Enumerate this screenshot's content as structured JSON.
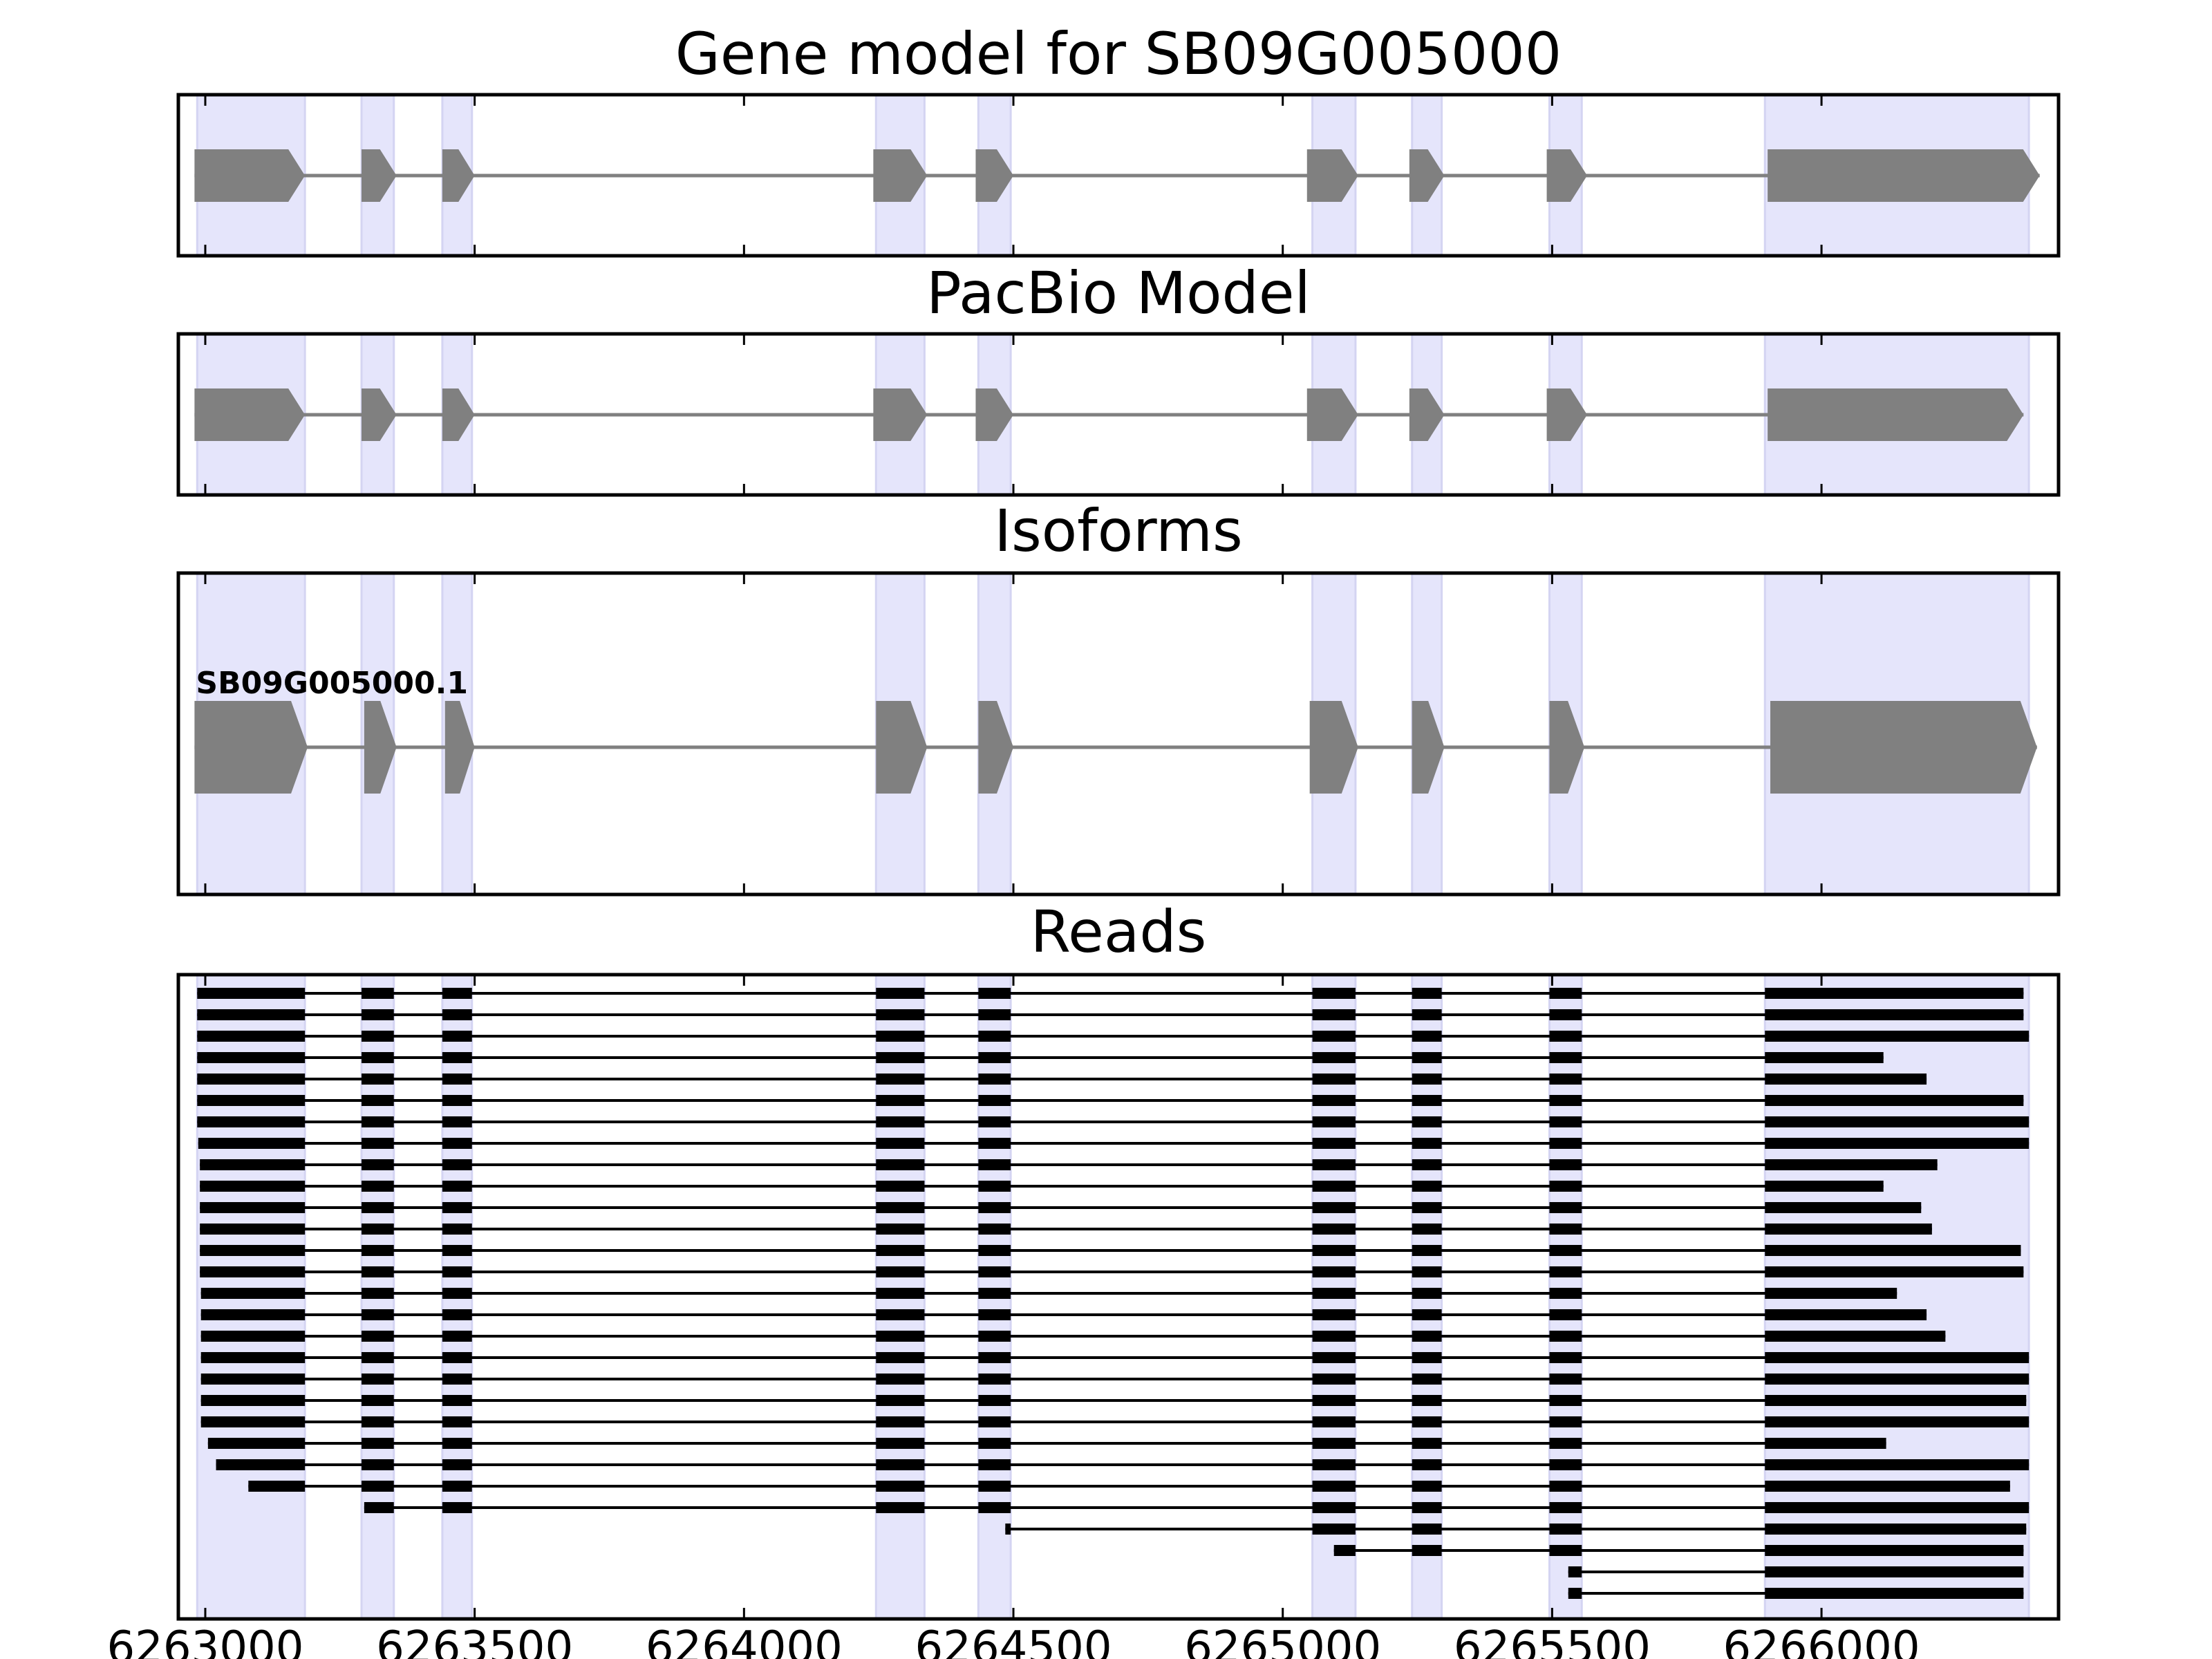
{
  "chart_data": {
    "type": "gene-structure",
    "x_range": [
      6262950,
      6266440
    ],
    "xticks": [
      6263000,
      6263500,
      6264000,
      6264500,
      6265000,
      6265500,
      6266000
    ],
    "xtick_labels": [
      "6263000",
      "6263500",
      "6264000",
      "6264500",
      "6265000",
      "6265500",
      "6266000"
    ],
    "exon_bands": [
      [
        6262985,
        6263185
      ],
      [
        6263290,
        6263350
      ],
      [
        6263440,
        6263495
      ],
      [
        6264245,
        6264335
      ],
      [
        6264435,
        6264495
      ],
      [
        6265055,
        6265135
      ],
      [
        6265240,
        6265295
      ],
      [
        6265495,
        6265555
      ],
      [
        6265895,
        6266385
      ]
    ],
    "gene_model": {
      "title": "Gene model for SB09G005000",
      "exons": [
        [
          6262980,
          6263185
        ],
        [
          6263290,
          6263355
        ],
        [
          6263440,
          6263500
        ],
        [
          6264240,
          6264340
        ],
        [
          6264430,
          6264500
        ],
        [
          6265045,
          6265140
        ],
        [
          6265235,
          6265300
        ],
        [
          6265490,
          6265565
        ],
        [
          6265900,
          6266405
        ]
      ]
    },
    "pacbio_model": {
      "title": "PacBio Model",
      "exons": [
        [
          6262980,
          6263185
        ],
        [
          6263290,
          6263355
        ],
        [
          6263440,
          6263500
        ],
        [
          6264240,
          6264340
        ],
        [
          6264430,
          6264500
        ],
        [
          6265045,
          6265140
        ],
        [
          6265235,
          6265300
        ],
        [
          6265490,
          6265565
        ],
        [
          6265900,
          6266375
        ]
      ]
    },
    "isoforms": {
      "title": "Isoforms",
      "items": [
        {
          "name": "SB09G005000.1",
          "exons": [
            [
              6262980,
              6263190
            ],
            [
              6263295,
              6263355
            ],
            [
              6263445,
              6263500
            ],
            [
              6264245,
              6264340
            ],
            [
              6264435,
              6264500
            ],
            [
              6265050,
              6265140
            ],
            [
              6265240,
              6265300
            ],
            [
              6265495,
              6265560
            ],
            [
              6265905,
              6266400
            ]
          ]
        }
      ]
    },
    "reads": {
      "title": "Reads",
      "items": [
        {
          "start": 6262975,
          "end": 6266375
        },
        {
          "start": 6262980,
          "end": 6266375
        },
        {
          "start": 6262982,
          "end": 6266390
        },
        {
          "start": 6262985,
          "end": 6266115
        },
        {
          "start": 6262985,
          "end": 6266195
        },
        {
          "start": 6262985,
          "end": 6266375
        },
        {
          "start": 6262985,
          "end": 6266390
        },
        {
          "start": 6262987,
          "end": 6266390
        },
        {
          "start": 6262990,
          "end": 6266215
        },
        {
          "start": 6262990,
          "end": 6266115
        },
        {
          "start": 6262990,
          "end": 6266185
        },
        {
          "start": 6262990,
          "end": 6266205
        },
        {
          "start": 6262990,
          "end": 6266370
        },
        {
          "start": 6262990,
          "end": 6266375
        },
        {
          "start": 6262992,
          "end": 6266140
        },
        {
          "start": 6262992,
          "end": 6266195
        },
        {
          "start": 6262992,
          "end": 6266230
        },
        {
          "start": 6262992,
          "end": 6266390
        },
        {
          "start": 6262992,
          "end": 6266390
        },
        {
          "start": 6262992,
          "end": 6266380
        },
        {
          "start": 6262992,
          "end": 6266390
        },
        {
          "start": 6263005,
          "end": 6266120
        },
        {
          "start": 6263020,
          "end": 6266390
        },
        {
          "start": 6263080,
          "end": 6266350
        },
        {
          "start": 6263295,
          "end": 6266385
        },
        {
          "start": 6264485,
          "end": 6266380
        },
        {
          "start": 6265095,
          "end": 6266375
        },
        {
          "start": 6265530,
          "end": 6266375
        },
        {
          "start": 6265530,
          "end": 6266375
        }
      ]
    }
  }
}
